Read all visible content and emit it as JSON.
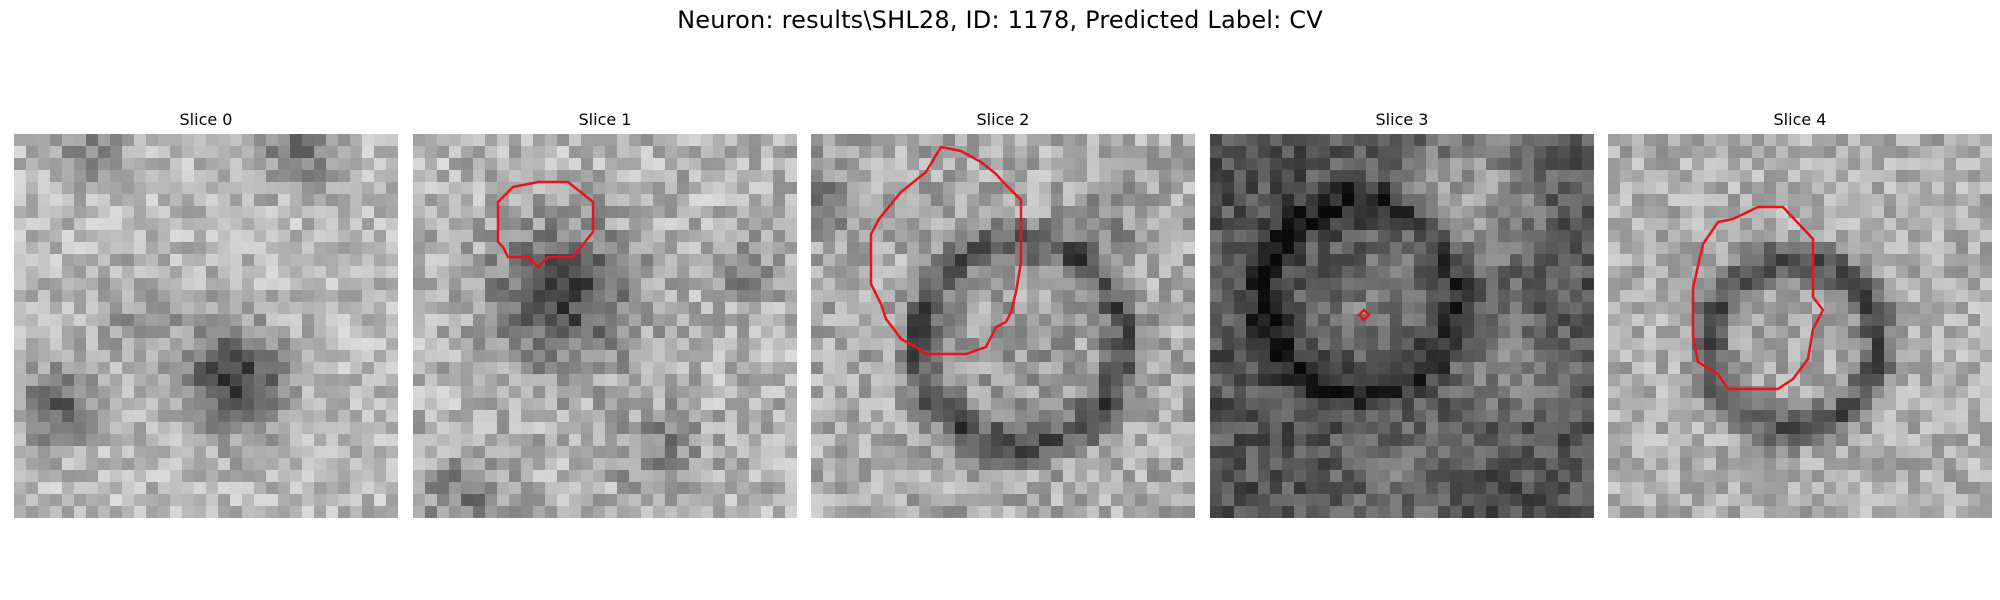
{
  "figure": {
    "title": "Neuron: results\\SHL28, ID: 1178, Predicted Label: CV"
  },
  "slices": [
    {
      "label": "Slice 0"
    },
    {
      "label": "Slice 1"
    },
    {
      "label": "Slice 2"
    },
    {
      "label": "Slice 3"
    },
    {
      "label": "Slice 4"
    }
  ],
  "colors": {
    "contour": "#e8141a",
    "background": "#ffffff"
  }
}
